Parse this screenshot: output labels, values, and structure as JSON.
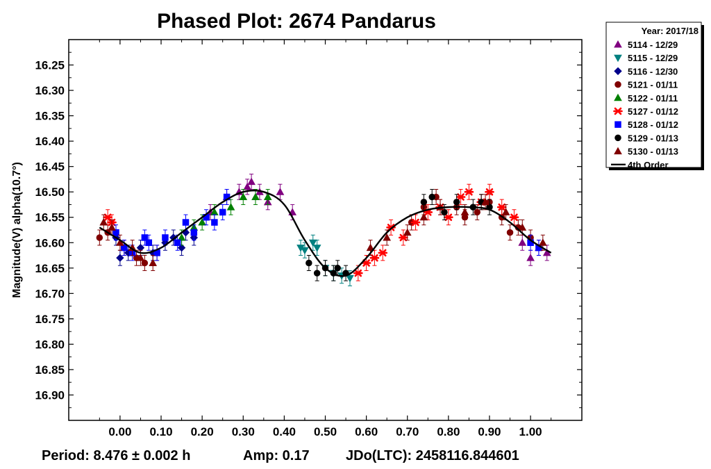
{
  "chart_data": {
    "type": "scatter",
    "title": "Phased Plot: 2674 Pandarus",
    "xlabel": "",
    "ylabel": "Magnitude(V) alpha(10.7°)",
    "xlim": [
      -0.125,
      1.125
    ],
    "ylim": [
      16.95,
      16.2
    ],
    "y_inverted": true,
    "x_ticks": [
      "0.00",
      "0.10",
      "0.20",
      "0.30",
      "0.40",
      "0.50",
      "0.60",
      "0.70",
      "0.80",
      "0.90",
      "1.00"
    ],
    "y_ticks": [
      "16.25",
      "16.30",
      "16.35",
      "16.40",
      "16.45",
      "16.50",
      "16.55",
      "16.60",
      "16.65",
      "16.70",
      "16.75",
      "16.80",
      "16.85",
      "16.90"
    ],
    "grid": false,
    "legend_placement": "outside-top-right",
    "legend_title": "Year: 2017/18",
    "footer": {
      "period": "Period: 8.476 ± 0.002 h",
      "amp": "Amp: 0.17",
      "jdo": "JDo(LTC): 2458116.844601"
    },
    "fit": {
      "name": "4th Order",
      "color": "#000000",
      "points": [
        [
          -0.05,
          16.57
        ],
        [
          0.0,
          16.595
        ],
        [
          0.05,
          16.62
        ],
        [
          0.1,
          16.61
        ],
        [
          0.15,
          16.58
        ],
        [
          0.2,
          16.55
        ],
        [
          0.25,
          16.52
        ],
        [
          0.3,
          16.5
        ],
        [
          0.35,
          16.5
        ],
        [
          0.4,
          16.525
        ],
        [
          0.45,
          16.595
        ],
        [
          0.5,
          16.65
        ],
        [
          0.55,
          16.665
        ],
        [
          0.6,
          16.63
        ],
        [
          0.65,
          16.58
        ],
        [
          0.7,
          16.55
        ],
        [
          0.75,
          16.535
        ],
        [
          0.8,
          16.53
        ],
        [
          0.85,
          16.53
        ],
        [
          0.9,
          16.535
        ],
        [
          0.95,
          16.56
        ],
        [
          1.0,
          16.595
        ],
        [
          1.05,
          16.62
        ]
      ]
    },
    "series": [
      {
        "name": "5114 - 12/29",
        "marker": "triangle-up",
        "color": "#800080",
        "x": [
          0.22,
          0.26,
          0.29,
          0.31,
          0.32,
          0.34,
          0.36,
          0.39,
          0.42,
          0.98,
          1.0,
          1.02,
          1.04
        ],
        "y": [
          16.54,
          16.51,
          16.5,
          16.49,
          16.48,
          16.5,
          16.52,
          16.5,
          16.54,
          16.6,
          16.63,
          16.61,
          16.62
        ]
      },
      {
        "name": "5115 - 12/29",
        "marker": "triangle-down",
        "color": "#008080",
        "x": [
          0.44,
          0.45,
          0.47,
          0.48,
          0.5,
          0.52,
          0.54,
          0.56
        ],
        "y": [
          16.61,
          16.615,
          16.6,
          16.61,
          16.65,
          16.66,
          16.665,
          16.67
        ]
      },
      {
        "name": "5116 - 12/30",
        "marker": "diamond",
        "color": "#00008B",
        "x": [
          -0.01,
          0.0,
          0.02,
          0.05,
          0.08,
          0.11,
          0.13,
          0.15,
          0.16,
          0.18
        ],
        "y": [
          16.59,
          16.63,
          16.62,
          16.61,
          16.62,
          16.6,
          16.59,
          16.61,
          16.58,
          16.59
        ]
      },
      {
        "name": "5121 - 01/11",
        "marker": "circle",
        "color": "#800000",
        "x": [
          -0.05,
          -0.03,
          0.01,
          0.04,
          0.06,
          0.09,
          0.71,
          0.74,
          0.77,
          0.82,
          0.84,
          0.87,
          0.9,
          0.93,
          0.95,
          0.97,
          1.0
        ],
        "y": [
          16.59,
          16.58,
          16.61,
          16.63,
          16.64,
          16.62,
          16.56,
          16.53,
          16.51,
          16.53,
          16.55,
          16.54,
          16.52,
          16.55,
          16.58,
          16.57,
          16.59
        ]
      },
      {
        "name": "5122 - 01/11",
        "marker": "triangle-up",
        "color": "#008000",
        "x": [
          0.15,
          0.18,
          0.2,
          0.23,
          0.27,
          0.3,
          0.33,
          0.36
        ],
        "y": [
          16.59,
          16.57,
          16.56,
          16.54,
          16.53,
          16.51,
          16.51,
          16.51
        ]
      },
      {
        "name": "5127 - 01/12",
        "marker": "asterisk",
        "color": "#FF0000",
        "x": [
          -0.03,
          -0.02,
          0.58,
          0.6,
          0.62,
          0.64,
          0.66,
          0.69,
          0.72,
          0.75,
          0.78,
          0.8,
          0.83,
          0.85,
          0.88,
          0.9,
          0.93,
          0.96
        ],
        "y": [
          16.55,
          16.56,
          16.66,
          16.64,
          16.63,
          16.62,
          16.57,
          16.59,
          16.56,
          16.54,
          16.53,
          16.55,
          16.51,
          16.5,
          16.52,
          16.5,
          16.53,
          16.55
        ]
      },
      {
        "name": "5128 - 01/12",
        "marker": "square",
        "color": "#0000FF",
        "x": [
          -0.01,
          0.01,
          0.03,
          0.06,
          0.07,
          0.09,
          0.11,
          0.14,
          0.16,
          0.18,
          0.21,
          0.23,
          0.25,
          0.26,
          1.0,
          1.02
        ],
        "y": [
          16.58,
          16.61,
          16.62,
          16.59,
          16.6,
          16.62,
          16.59,
          16.6,
          16.56,
          16.58,
          16.55,
          16.56,
          16.54,
          16.51,
          16.6,
          16.61
        ]
      },
      {
        "name": "5129 - 01/13",
        "marker": "circle",
        "color": "#000000",
        "x": [
          0.46,
          0.48,
          0.5,
          0.52,
          0.53,
          0.55,
          0.74,
          0.76,
          0.79,
          0.82,
          0.86,
          0.88,
          0.9
        ],
        "y": [
          16.64,
          16.66,
          16.65,
          16.66,
          16.65,
          16.66,
          16.52,
          16.51,
          16.54,
          16.52,
          16.53,
          16.52,
          16.53
        ]
      },
      {
        "name": "5130 - 01/13",
        "marker": "triangle-up",
        "color": "#800000",
        "x": [
          -0.04,
          -0.02,
          0.0,
          0.03,
          0.05,
          0.08,
          0.61,
          0.65,
          0.7,
          0.74,
          0.78,
          0.84,
          0.89,
          0.94,
          0.98,
          1.03
        ],
        "y": [
          16.56,
          16.57,
          16.6,
          16.61,
          16.63,
          16.64,
          16.61,
          16.59,
          16.58,
          16.55,
          16.53,
          16.54,
          16.52,
          16.54,
          16.57,
          16.6
        ]
      }
    ]
  }
}
